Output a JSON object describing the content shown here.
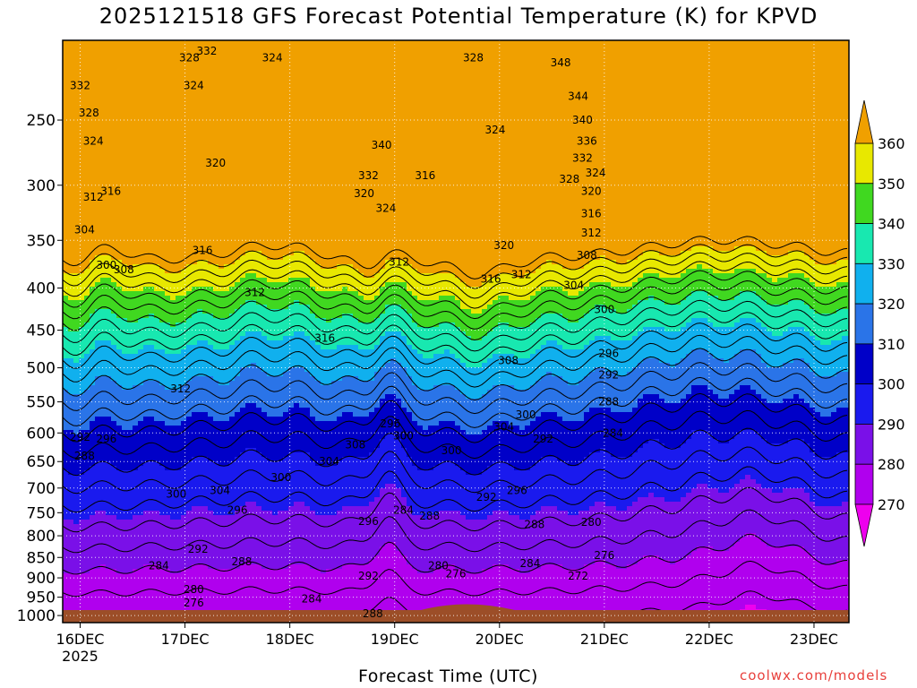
{
  "header": {
    "title": "2025121518 GFS Forecast Potential Temperature (K) for KPVD"
  },
  "footer": {
    "xaxis_title": "Forecast Time (UTC)",
    "credit": "coolwx.com/models"
  },
  "chart_data": {
    "type": "heatmap",
    "title": "2025121518 GFS Forecast Potential Temperature (K) for KPVD",
    "xlabel": "Forecast Time (UTC)",
    "ylabel": "",
    "x_tick_labels": [
      "16DEC",
      "17DEC",
      "18DEC",
      "19DEC",
      "20DEC",
      "21DEC",
      "22DEC",
      "23DEC"
    ],
    "x_year_label": "2025",
    "x_range_hours": [
      0,
      180
    ],
    "y_tick_labels": [
      "250",
      "300",
      "350",
      "400",
      "450",
      "500",
      "550",
      "600",
      "650",
      "700",
      "750",
      "800",
      "850",
      "900",
      "950",
      "1000"
    ],
    "y_tick_values": [
      250,
      300,
      350,
      400,
      450,
      500,
      550,
      600,
      650,
      700,
      750,
      800,
      850,
      900,
      950,
      1000
    ],
    "y_range": [
      200,
      1020
    ],
    "y_scale": "log",
    "grid": true,
    "colorbar": {
      "levels": [
        270,
        280,
        290,
        300,
        310,
        320,
        330,
        340,
        350,
        360
      ],
      "colors": [
        "#ee00ee",
        "#b000ee",
        "#7a10e8",
        "#1a1aee",
        "#0000c8",
        "#2a74e8",
        "#10b0ee",
        "#18e8b0",
        "#40d820",
        "#e8e800",
        "#f0a000"
      ],
      "placement": "right"
    },
    "contour_labels": [
      {
        "value": "332",
        "hour": 4,
        "p": 227
      },
      {
        "value": "328",
        "hour": 6,
        "p": 245
      },
      {
        "value": "324",
        "hour": 7,
        "p": 265
      },
      {
        "value": "328",
        "hour": 29,
        "p": 210
      },
      {
        "value": "332",
        "hour": 33,
        "p": 206
      },
      {
        "value": "324",
        "hour": 30,
        "p": 227
      },
      {
        "value": "324",
        "hour": 48,
        "p": 210
      },
      {
        "value": "320",
        "hour": 35,
        "p": 282
      },
      {
        "value": "316",
        "hour": 11,
        "p": 305
      },
      {
        "value": "312",
        "hour": 7,
        "p": 310
      },
      {
        "value": "304",
        "hour": 5,
        "p": 340
      },
      {
        "value": "300",
        "hour": 10,
        "p": 375
      },
      {
        "value": "308",
        "hour": 14,
        "p": 380
      },
      {
        "value": "316",
        "hour": 32,
        "p": 360
      },
      {
        "value": "312",
        "hour": 44,
        "p": 405
      },
      {
        "value": "312",
        "hour": 27,
        "p": 530
      },
      {
        "value": "316",
        "hour": 60,
        "p": 460
      },
      {
        "value": "340",
        "hour": 73,
        "p": 268
      },
      {
        "value": "332",
        "hour": 70,
        "p": 292
      },
      {
        "value": "320",
        "hour": 69,
        "p": 307
      },
      {
        "value": "324",
        "hour": 74,
        "p": 320
      },
      {
        "value": "316",
        "hour": 83,
        "p": 292
      },
      {
        "value": "312",
        "hour": 77,
        "p": 372
      },
      {
        "value": "328",
        "hour": 94,
        "p": 210
      },
      {
        "value": "324",
        "hour": 99,
        "p": 257
      },
      {
        "value": "320",
        "hour": 101,
        "p": 355
      },
      {
        "value": "316",
        "hour": 98,
        "p": 390
      },
      {
        "value": "312",
        "hour": 105,
        "p": 385
      },
      {
        "value": "308",
        "hour": 102,
        "p": 490
      },
      {
        "value": "304",
        "hour": 101,
        "p": 590
      },
      {
        "value": "300",
        "hour": 106,
        "p": 570
      },
      {
        "value": "348",
        "hour": 114,
        "p": 213
      },
      {
        "value": "344",
        "hour": 118,
        "p": 234
      },
      {
        "value": "340",
        "hour": 119,
        "p": 250
      },
      {
        "value": "336",
        "hour": 120,
        "p": 265
      },
      {
        "value": "332",
        "hour": 119,
        "p": 278
      },
      {
        "value": "328",
        "hour": 116,
        "p": 295
      },
      {
        "value": "324",
        "hour": 122,
        "p": 290
      },
      {
        "value": "320",
        "hour": 121,
        "p": 305
      },
      {
        "value": "316",
        "hour": 121,
        "p": 325
      },
      {
        "value": "312",
        "hour": 121,
        "p": 343
      },
      {
        "value": "308",
        "hour": 120,
        "p": 365
      },
      {
        "value": "304",
        "hour": 117,
        "p": 397
      },
      {
        "value": "300",
        "hour": 124,
        "p": 425
      },
      {
        "value": "296",
        "hour": 125,
        "p": 480
      },
      {
        "value": "292",
        "hour": 125,
        "p": 510
      },
      {
        "value": "288",
        "hour": 125,
        "p": 550
      },
      {
        "value": "284",
        "hour": 126,
        "p": 600
      },
      {
        "value": "292",
        "hour": 110,
        "p": 610
      },
      {
        "value": "292",
        "hour": 4,
        "p": 607
      },
      {
        "value": "296",
        "hour": 10,
        "p": 610
      },
      {
        "value": "288",
        "hour": 5,
        "p": 640
      },
      {
        "value": "300",
        "hour": 26,
        "p": 712
      },
      {
        "value": "304",
        "hour": 36,
        "p": 705
      },
      {
        "value": "300",
        "hour": 50,
        "p": 680
      },
      {
        "value": "304",
        "hour": 61,
        "p": 650
      },
      {
        "value": "308",
        "hour": 67,
        "p": 620
      },
      {
        "value": "300",
        "hour": 78,
        "p": 605
      },
      {
        "value": "296",
        "hour": 75,
        "p": 585
      },
      {
        "value": "300",
        "hour": 89,
        "p": 630
      },
      {
        "value": "296",
        "hour": 40,
        "p": 745
      },
      {
        "value": "292",
        "hour": 31,
        "p": 830
      },
      {
        "value": "288",
        "hour": 41,
        "p": 860
      },
      {
        "value": "284",
        "hour": 22,
        "p": 870
      },
      {
        "value": "280",
        "hour": 30,
        "p": 930
      },
      {
        "value": "276",
        "hour": 30,
        "p": 965
      },
      {
        "value": "284",
        "hour": 57,
        "p": 955
      },
      {
        "value": "288",
        "hour": 71,
        "p": 995
      },
      {
        "value": "296",
        "hour": 70,
        "p": 768
      },
      {
        "value": "292",
        "hour": 70,
        "p": 895
      },
      {
        "value": "284",
        "hour": 78,
        "p": 745
      },
      {
        "value": "288",
        "hour": 84,
        "p": 757
      },
      {
        "value": "280",
        "hour": 86,
        "p": 870
      },
      {
        "value": "276",
        "hour": 90,
        "p": 890
      },
      {
        "value": "292",
        "hour": 97,
        "p": 718
      },
      {
        "value": "296",
        "hour": 104,
        "p": 705
      },
      {
        "value": "288",
        "hour": 108,
        "p": 775
      },
      {
        "value": "284",
        "hour": 107,
        "p": 865
      },
      {
        "value": "280",
        "hour": 121,
        "p": 770
      },
      {
        "value": "276",
        "hour": 124,
        "p": 845
      },
      {
        "value": "272",
        "hour": 118,
        "p": 895
      }
    ]
  }
}
